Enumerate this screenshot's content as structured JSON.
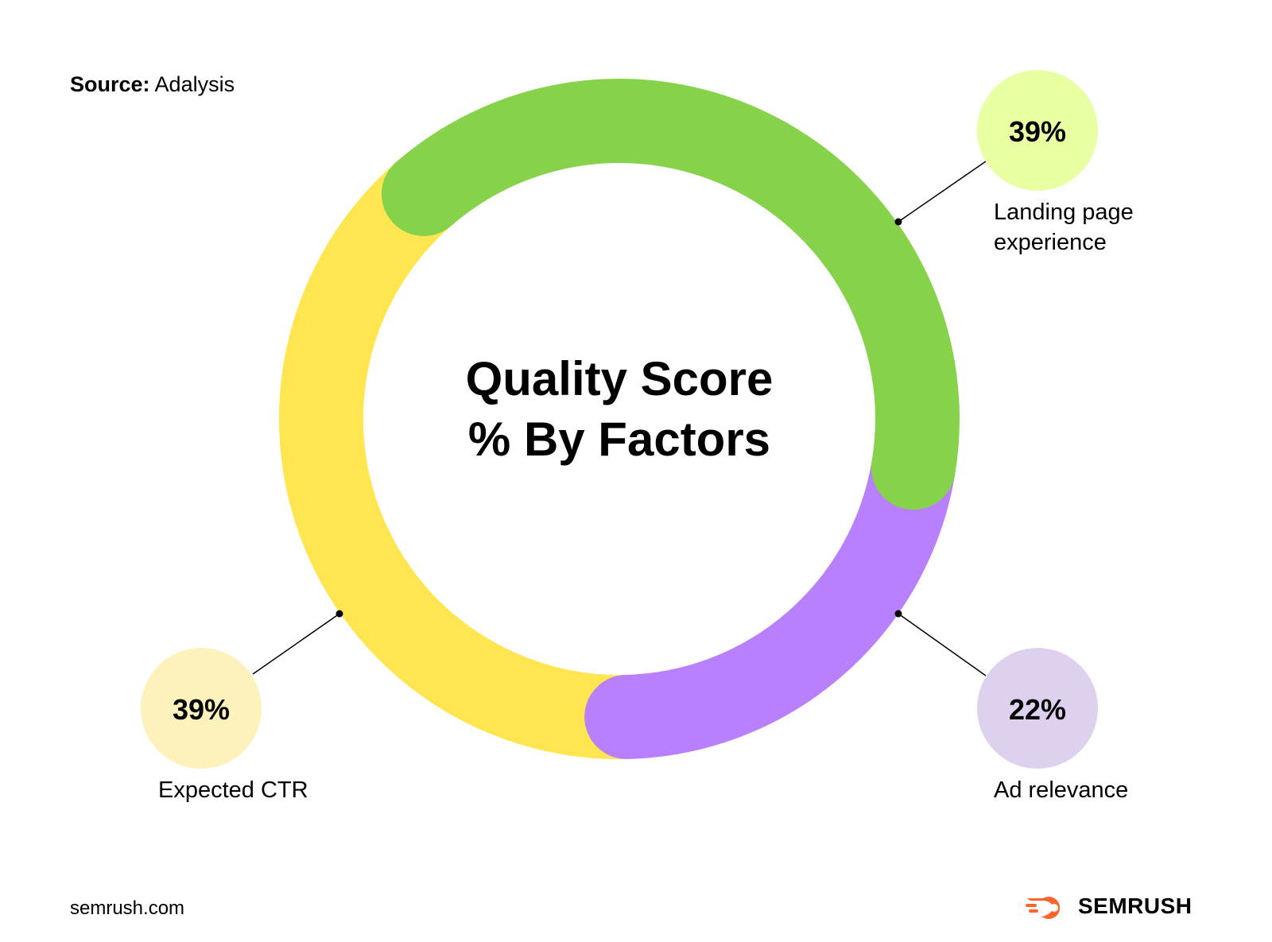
{
  "source": {
    "label": "Source:",
    "value": "Adalysis"
  },
  "footer": {
    "site": "semrush.com",
    "brand": "SEMRUSH"
  },
  "colors": {
    "landing": "#86D24A",
    "landing_bubble": "#E9FFA4",
    "ad_relevance": "#B880FC",
    "ad_bubble": "#DED1F0",
    "expected_ctr": "#FFE54F",
    "ctr_bubble": "#FDF1BC",
    "brand": "#FF642D"
  },
  "chart_data": {
    "type": "pie",
    "title_lines": [
      "Quality Score",
      "% By Factors"
    ],
    "categories": [
      "Landing page experience",
      "Ad relevance",
      "Expected CTR"
    ],
    "values": [
      39,
      22,
      39
    ],
    "labels": {
      "landing": {
        "pct": "39%",
        "lines": [
          "Landing page",
          "experience"
        ]
      },
      "ad": {
        "pct": "22%",
        "lines": [
          "Ad relevance"
        ]
      },
      "ctr": {
        "pct": "39%",
        "lines": [
          "Expected CTR"
        ]
      }
    }
  }
}
